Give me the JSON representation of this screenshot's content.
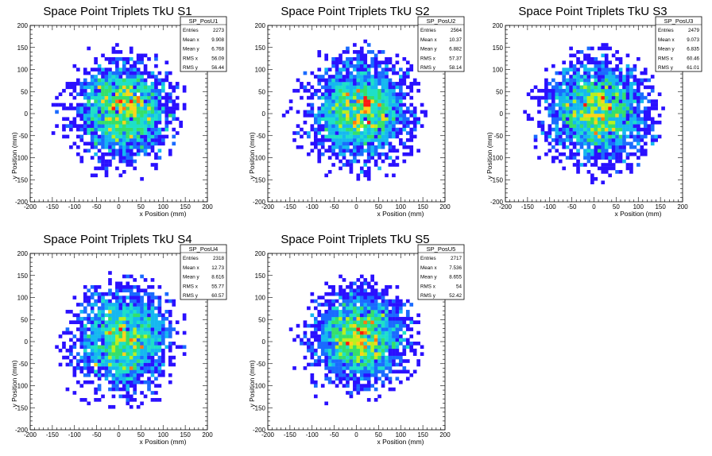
{
  "chart_data": [
    {
      "type": "heatmap",
      "title": "Space Point Triplets TkU S1",
      "xlabel": "x Position (mm)",
      "ylabel": "y Position (mm)",
      "xlim": [
        -200,
        200
      ],
      "ylim": [
        -200,
        200
      ],
      "xticks": [
        "-200",
        "-150",
        "-100",
        "-50",
        "0",
        "50",
        "100",
        "150",
        "200"
      ],
      "yticks": [
        "-200",
        "-150",
        "-100",
        "-50",
        "0",
        "50",
        "100",
        "150",
        "200"
      ],
      "stats": {
        "name": "SP_PosU1",
        "rows": [
          {
            "label": "Entries",
            "value": "2273"
          },
          {
            "label": "Mean x",
            "value": "9.908"
          },
          {
            "label": "Mean y",
            "value": "6.768"
          },
          {
            "label": "RMS x",
            "value": "56.09"
          },
          {
            "label": "RMS y",
            "value": "56.44"
          }
        ]
      },
      "distribution": {
        "entries": 2273,
        "mean_x": 9.908,
        "mean_y": 6.768,
        "rms_x": 56.09,
        "rms_y": 56.44,
        "extent_radius_mm": 160
      }
    },
    {
      "type": "heatmap",
      "title": "Space Point Triplets TkU S2",
      "xlabel": "x Position (mm)",
      "ylabel": "y Position (mm)",
      "xlim": [
        -200,
        200
      ],
      "ylim": [
        -200,
        200
      ],
      "xticks": [
        "-200",
        "-150",
        "-100",
        "-50",
        "0",
        "50",
        "100",
        "150",
        "200"
      ],
      "yticks": [
        "-200",
        "-150",
        "-100",
        "-50",
        "0",
        "50",
        "100",
        "150",
        "200"
      ],
      "stats": {
        "name": "SP_PosU2",
        "rows": [
          {
            "label": "Entries",
            "value": "2564"
          },
          {
            "label": "Mean x",
            "value": "10.37"
          },
          {
            "label": "Mean y",
            "value": "6.882"
          },
          {
            "label": "RMS x",
            "value": "57.37"
          },
          {
            "label": "RMS y",
            "value": "58.14"
          }
        ]
      },
      "distribution": {
        "entries": 2564,
        "mean_x": 10.37,
        "mean_y": 6.882,
        "rms_x": 57.37,
        "rms_y": 58.14,
        "extent_radius_mm": 165
      }
    },
    {
      "type": "heatmap",
      "title": "Space Point Triplets TkU S3",
      "xlabel": "x Position (mm)",
      "ylabel": "y Position (mm)",
      "xlim": [
        -200,
        200
      ],
      "ylim": [
        -200,
        200
      ],
      "xticks": [
        "-200",
        "-150",
        "-100",
        "-50",
        "0",
        "50",
        "100",
        "150",
        "200"
      ],
      "yticks": [
        "-200",
        "-150",
        "-100",
        "-50",
        "0",
        "50",
        "100",
        "150",
        "200"
      ],
      "stats": {
        "name": "SP_PosU3",
        "rows": [
          {
            "label": "Entries",
            "value": "2479"
          },
          {
            "label": "Mean x",
            "value": "9.073"
          },
          {
            "label": "Mean y",
            "value": "6.835"
          },
          {
            "label": "RMS x",
            "value": "60.46"
          },
          {
            "label": "RMS y",
            "value": "61.01"
          }
        ]
      },
      "distribution": {
        "entries": 2479,
        "mean_x": 9.073,
        "mean_y": 6.835,
        "rms_x": 60.46,
        "rms_y": 61.01,
        "extent_radius_mm": 160
      }
    },
    {
      "type": "heatmap",
      "title": "Space Point Triplets TkU S4",
      "xlabel": "x Position (mm)",
      "ylabel": "y Position (mm)",
      "xlim": [
        -200,
        200
      ],
      "ylim": [
        -200,
        200
      ],
      "xticks": [
        "-200",
        "-150",
        "-100",
        "-50",
        "0",
        "50",
        "100",
        "150",
        "200"
      ],
      "yticks": [
        "-200",
        "-150",
        "-100",
        "-50",
        "0",
        "50",
        "100",
        "150",
        "200"
      ],
      "stats": {
        "name": "SP_PosU4",
        "rows": [
          {
            "label": "Entries",
            "value": "2318"
          },
          {
            "label": "Mean x",
            "value": "12.73"
          },
          {
            "label": "Mean y",
            "value": "8.616"
          },
          {
            "label": "RMS x",
            "value": "55.77"
          },
          {
            "label": "RMS y",
            "value": "60.57"
          }
        ]
      },
      "distribution": {
        "entries": 2318,
        "mean_x": 12.73,
        "mean_y": 8.616,
        "rms_x": 55.77,
        "rms_y": 60.57,
        "extent_radius_mm": 160
      }
    },
    {
      "type": "heatmap",
      "title": "Space Point Triplets TkU S5",
      "xlabel": "x Position (mm)",
      "ylabel": "y Position (mm)",
      "xlim": [
        -200,
        200
      ],
      "ylim": [
        -200,
        200
      ],
      "xticks": [
        "-200",
        "-150",
        "-100",
        "-50",
        "0",
        "50",
        "100",
        "150",
        "200"
      ],
      "yticks": [
        "-200",
        "-150",
        "-100",
        "-50",
        "0",
        "50",
        "100",
        "150",
        "200"
      ],
      "stats": {
        "name": "SP_PosU5",
        "rows": [
          {
            "label": "Entries",
            "value": "2717"
          },
          {
            "label": "Mean x",
            "value": "7.536"
          },
          {
            "label": "Mean y",
            "value": "8.655"
          },
          {
            "label": "RMS x",
            "value": "54"
          },
          {
            "label": "RMS y",
            "value": "52.42"
          }
        ]
      },
      "distribution": {
        "entries": 2717,
        "mean_x": 7.536,
        "mean_y": 8.655,
        "rms_x": 54,
        "rms_y": 52.42,
        "extent_radius_mm": 155
      }
    }
  ],
  "palette": [
    "#2a10ff",
    "#1a6bff",
    "#15b8f0",
    "#1ee0c8",
    "#35e06a",
    "#b8f020",
    "#ffd21c",
    "#ff7a10",
    "#ff1a10"
  ]
}
